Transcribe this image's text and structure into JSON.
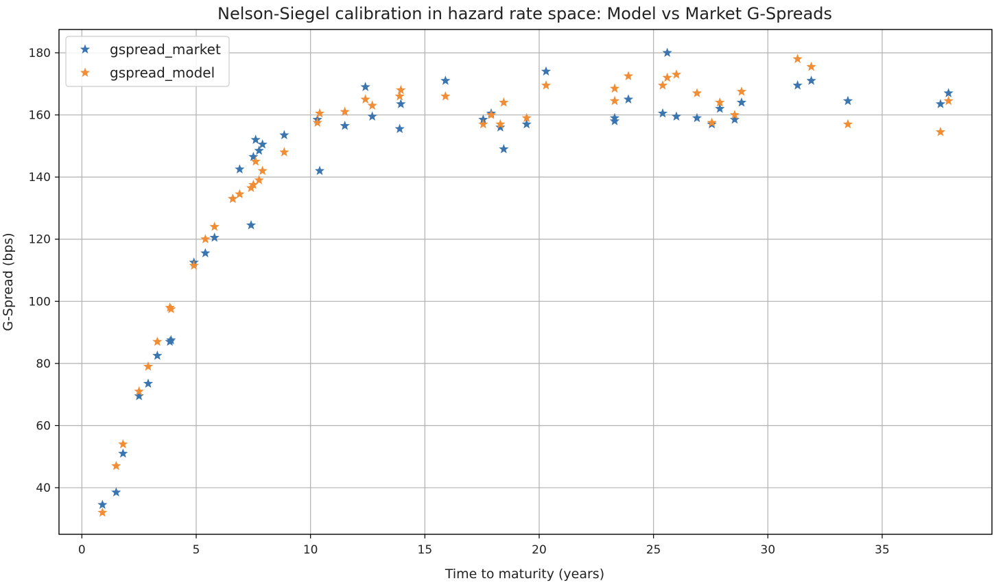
{
  "chart_data": {
    "type": "scatter",
    "title": "Nelson-Siegel calibration in hazard rate space: Model vs Market G-Spreads",
    "xlabel": "Time to maturity (years)",
    "ylabel": "G-Spread (bps)",
    "xlim": [
      -1,
      39.8
    ],
    "ylim": [
      25,
      187.5
    ],
    "xticks": [
      0,
      5,
      10,
      15,
      20,
      25,
      30,
      35
    ],
    "yticks": [
      40,
      60,
      80,
      100,
      120,
      140,
      160,
      180
    ],
    "grid": true,
    "legend_position": "top-left",
    "marker": "star",
    "series": [
      {
        "name": "gspread_market",
        "color": "#3a75b0",
        "points": [
          [
            0.9,
            34.5
          ],
          [
            1.5,
            38.5
          ],
          [
            1.8,
            51
          ],
          [
            2.5,
            69.5
          ],
          [
            2.9,
            73.5
          ],
          [
            3.3,
            82.5
          ],
          [
            3.85,
            87
          ],
          [
            3.9,
            87.5
          ],
          [
            4.9,
            112.5
          ],
          [
            5.4,
            115.5
          ],
          [
            5.8,
            120.5
          ],
          [
            6.6,
            133
          ],
          [
            6.9,
            142.5
          ],
          [
            7.4,
            124.5
          ],
          [
            7.5,
            146.5
          ],
          [
            7.6,
            152
          ],
          [
            7.75,
            148.5
          ],
          [
            7.9,
            150.5
          ],
          [
            8.85,
            153.5
          ],
          [
            10.3,
            158.5
          ],
          [
            10.4,
            142
          ],
          [
            11.5,
            156.5
          ],
          [
            12.4,
            169
          ],
          [
            12.7,
            159.5
          ],
          [
            13.9,
            155.5
          ],
          [
            13.95,
            163.5
          ],
          [
            15.9,
            171
          ],
          [
            17.55,
            158.5
          ],
          [
            17.9,
            160.5
          ],
          [
            18.3,
            156
          ],
          [
            18.45,
            149
          ],
          [
            19.45,
            157
          ],
          [
            20.3,
            174
          ],
          [
            23.3,
            158
          ],
          [
            23.3,
            159
          ],
          [
            23.9,
            165
          ],
          [
            25.4,
            160.5
          ],
          [
            25.6,
            180
          ],
          [
            26,
            159.5
          ],
          [
            26.9,
            159
          ],
          [
            27.55,
            157
          ],
          [
            27.9,
            162
          ],
          [
            28.55,
            158.5
          ],
          [
            28.85,
            164
          ],
          [
            31.3,
            169.5
          ],
          [
            31.9,
            171
          ],
          [
            33.5,
            164.5
          ],
          [
            37.55,
            163.5
          ],
          [
            37.9,
            167
          ]
        ]
      },
      {
        "name": "gspread_model",
        "color": "#f08d35",
        "points": [
          [
            0.9,
            32
          ],
          [
            1.5,
            47
          ],
          [
            1.8,
            54
          ],
          [
            2.5,
            71
          ],
          [
            2.9,
            79
          ],
          [
            3.3,
            87
          ],
          [
            3.85,
            98
          ],
          [
            3.9,
            97.5
          ],
          [
            4.9,
            111.5
          ],
          [
            5.4,
            120
          ],
          [
            5.8,
            124
          ],
          [
            6.6,
            133
          ],
          [
            6.9,
            134.5
          ],
          [
            7.4,
            136.5
          ],
          [
            7.5,
            137.5
          ],
          [
            7.6,
            145
          ],
          [
            7.75,
            139
          ],
          [
            7.9,
            142
          ],
          [
            8.85,
            148
          ],
          [
            10.3,
            157.5
          ],
          [
            10.4,
            160.5
          ],
          [
            11.5,
            161
          ],
          [
            12.4,
            165
          ],
          [
            12.7,
            163
          ],
          [
            13.9,
            166
          ],
          [
            13.95,
            168
          ],
          [
            15.9,
            166
          ],
          [
            17.55,
            157
          ],
          [
            17.9,
            160
          ],
          [
            18.3,
            157
          ],
          [
            18.45,
            164
          ],
          [
            19.45,
            159
          ],
          [
            20.3,
            169.5
          ],
          [
            23.3,
            164.5
          ],
          [
            23.3,
            168.5
          ],
          [
            23.9,
            172.5
          ],
          [
            25.4,
            169.5
          ],
          [
            25.6,
            172
          ],
          [
            26,
            173
          ],
          [
            26.9,
            167
          ],
          [
            27.55,
            157.5
          ],
          [
            27.9,
            164
          ],
          [
            28.55,
            160
          ],
          [
            28.85,
            167.5
          ],
          [
            31.3,
            178
          ],
          [
            31.9,
            175.5
          ],
          [
            33.5,
            157
          ],
          [
            37.55,
            154.5
          ],
          [
            37.9,
            164.5
          ]
        ]
      }
    ]
  }
}
